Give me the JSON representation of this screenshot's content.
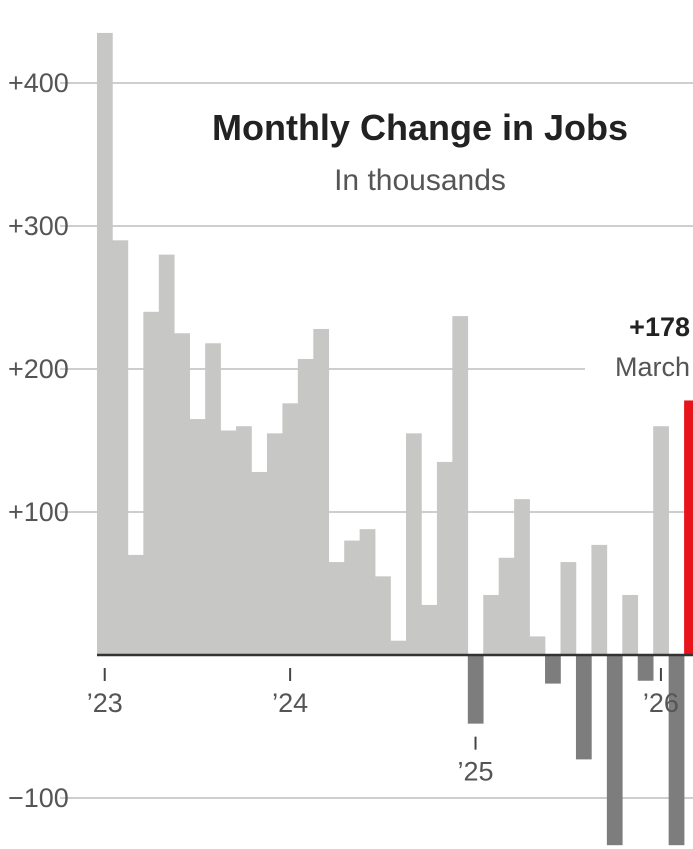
{
  "chart_data": {
    "type": "bar",
    "title": "Monthly Change in Jobs",
    "subtitle": "In thousands",
    "ylim": [
      -135,
      440
    ],
    "yticks": [
      400,
      300,
      200,
      100,
      -100
    ],
    "ytick_labels": [
      "+400",
      "+300",
      "+200",
      "+100",
      "−100"
    ],
    "grid": true,
    "xticks": [
      {
        "label": "’23",
        "index": 0
      },
      {
        "label": "’24",
        "index": 12
      },
      {
        "label": "’25",
        "index": 24
      },
      {
        "label": "’26",
        "index": 36
      }
    ],
    "values": [
      435,
      290,
      70,
      240,
      280,
      225,
      165,
      218,
      157,
      160,
      128,
      155,
      176,
      207,
      228,
      65,
      80,
      88,
      55,
      10,
      155,
      35,
      135,
      237,
      -48,
      42,
      68,
      109,
      13,
      -20,
      65,
      -73,
      77,
      -133,
      42,
      -18,
      160,
      -133,
      178
    ],
    "highlight": {
      "index": 38,
      "value_label": "+178",
      "label": "March"
    },
    "colors": {
      "positive": "#c7c7c5",
      "negative": "#7d7d7d",
      "highlight": "#e8141c",
      "grid": "#bdbdbd",
      "baseline": "#333333"
    }
  }
}
